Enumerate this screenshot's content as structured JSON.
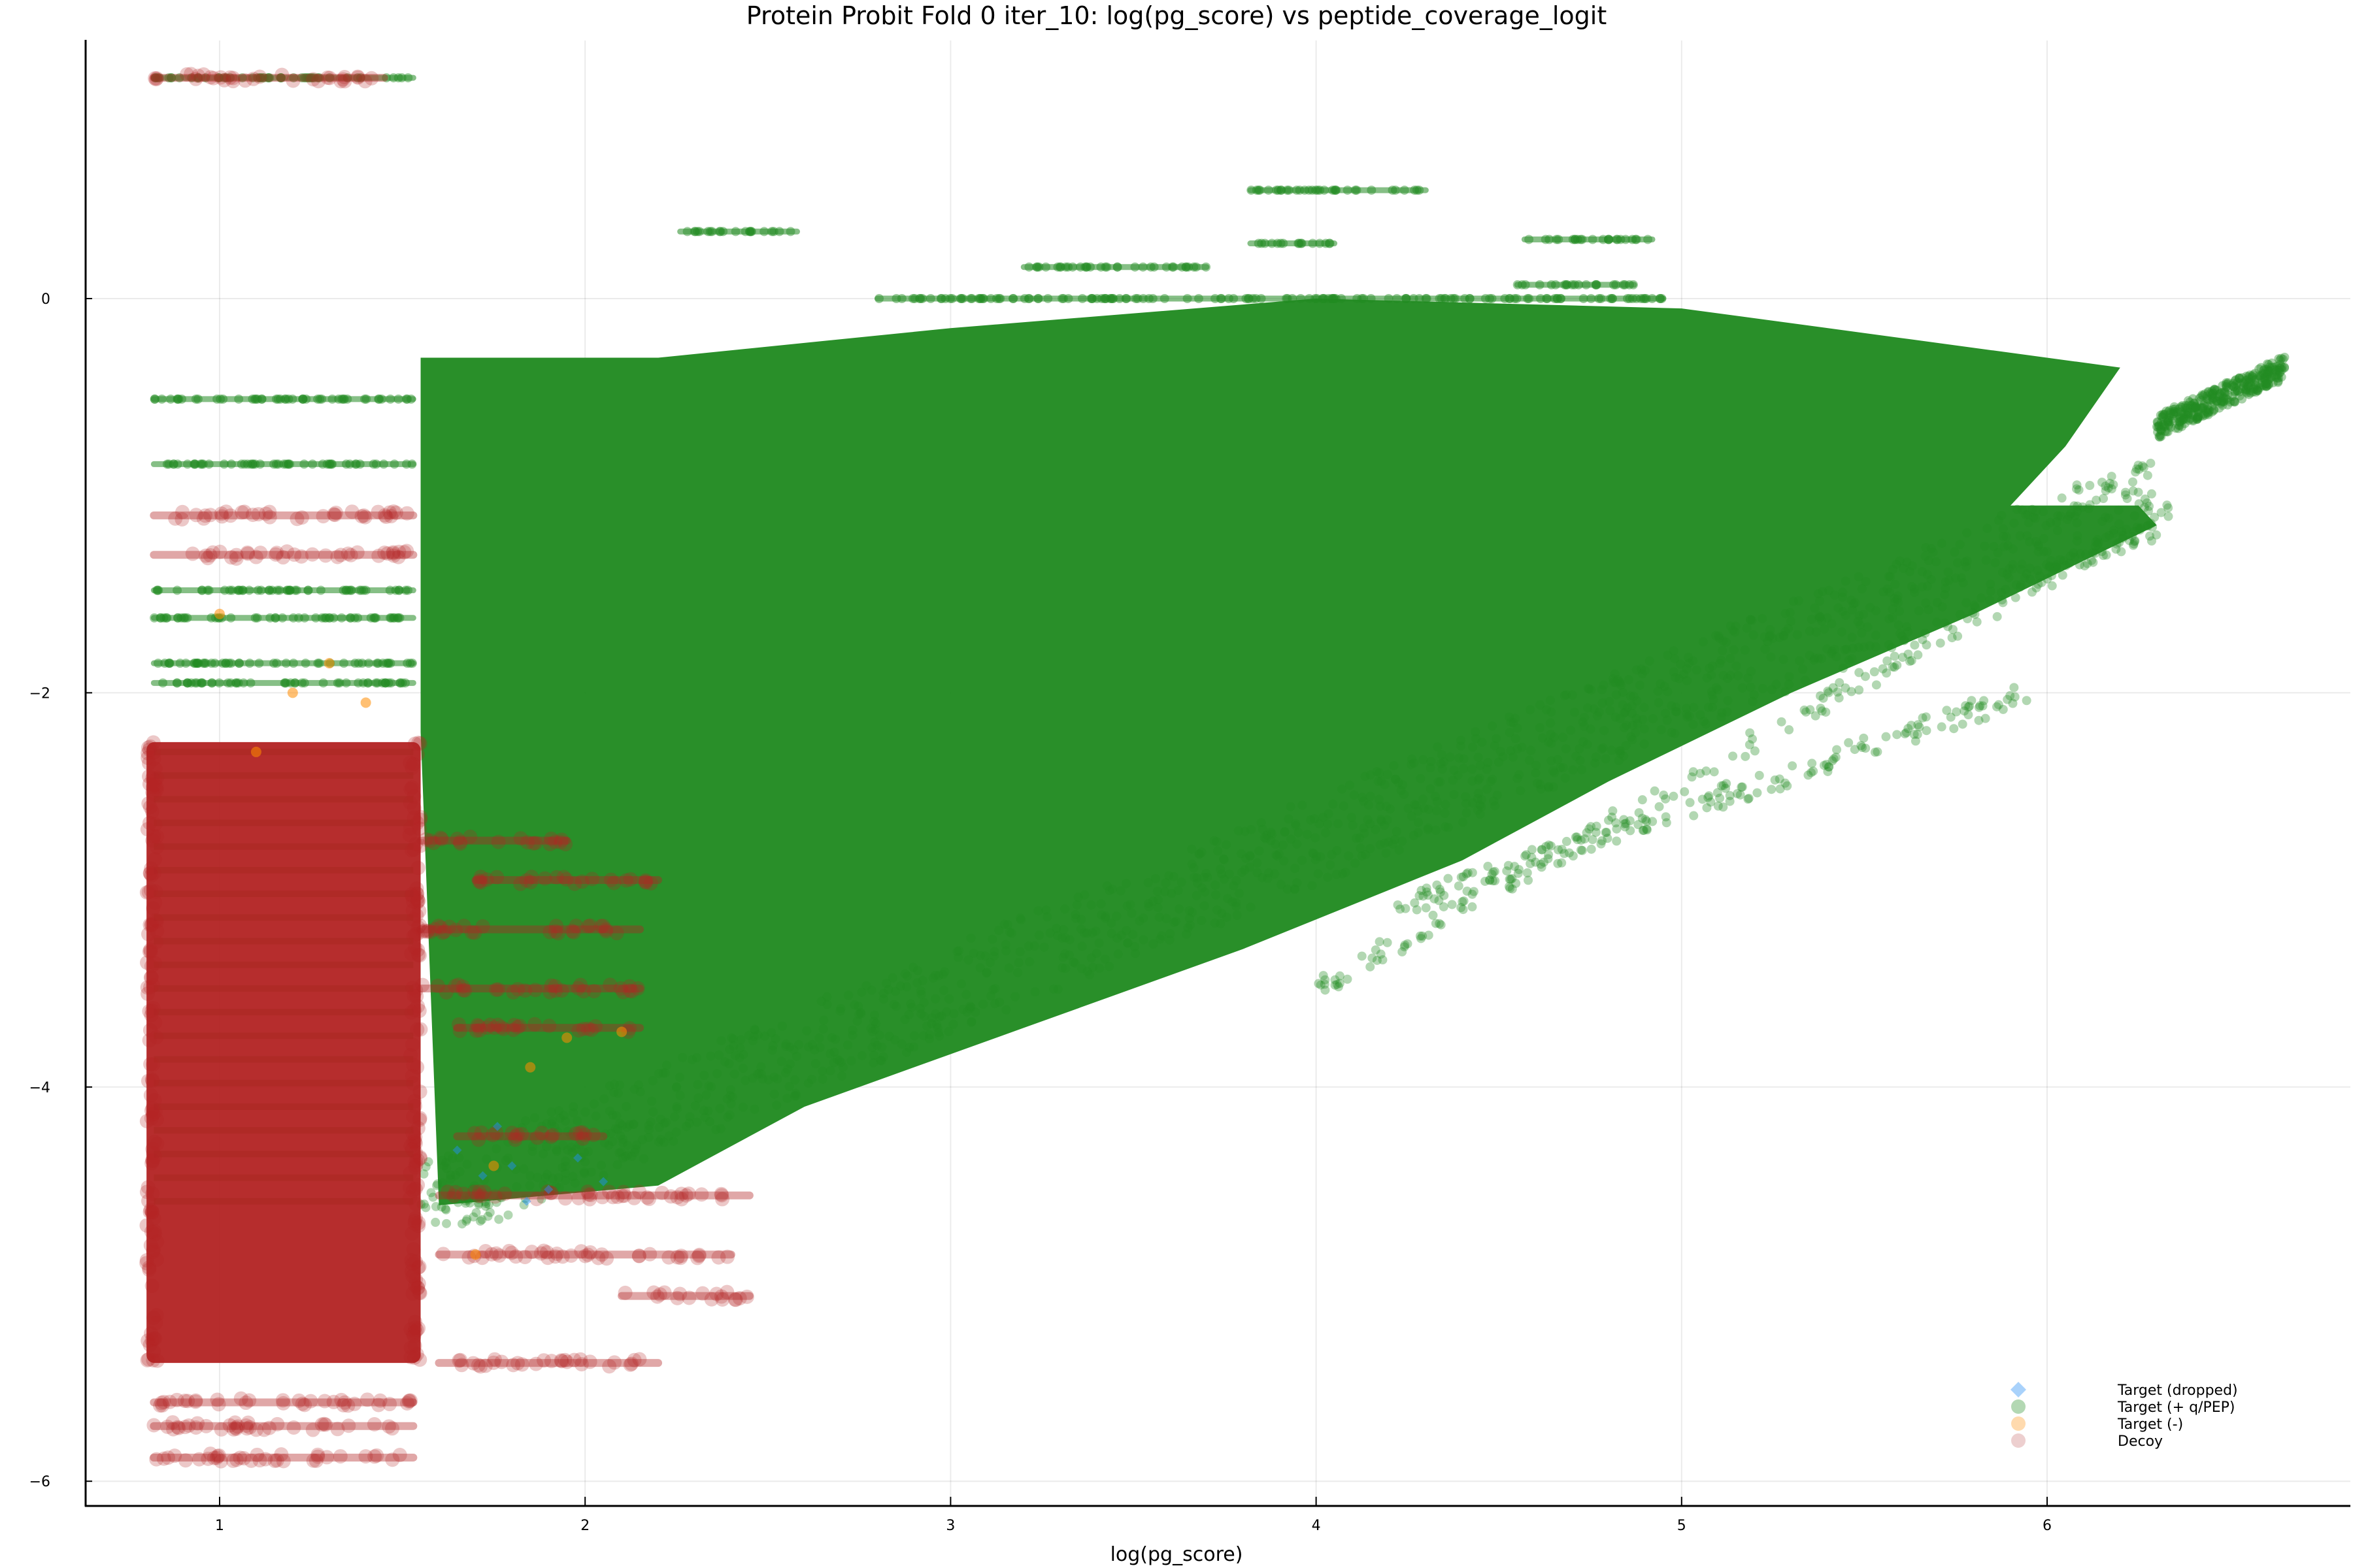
{
  "chart_data": {
    "type": "scatter",
    "title": "Protein Probit Fold 0 iter_10: log(pg_score) vs peptide_coverage_logit",
    "xlabel": "log(pg_score)",
    "ylabel": "",
    "xlim": [
      0.62,
      6.82
    ],
    "ylim": [
      -6.12,
      1.3
    ],
    "xticks": [
      1,
      2,
      3,
      4,
      5,
      6
    ],
    "yticks": [
      0,
      -2,
      -4,
      -6
    ],
    "ytick_labels": [
      "0",
      "−2",
      "−4",
      "−6"
    ],
    "grid": true,
    "legend_position": "bottom-right",
    "colors": {
      "target_dropped": "#1E90FF",
      "target_pass": "#228B22",
      "target_fail": "#FF8C00",
      "decoy": "#B22222"
    },
    "series": [
      {
        "name": "Target (dropped)",
        "marker": "diamond",
        "color": "#1E90FF",
        "description": "sparse points near x 1.6-2.3, y -4.2 to -4.6",
        "points": [
          [
            1.65,
            -4.32
          ],
          [
            1.72,
            -4.45
          ],
          [
            1.8,
            -4.4
          ],
          [
            1.9,
            -4.52
          ],
          [
            1.98,
            -4.36
          ],
          [
            2.05,
            -4.48
          ],
          [
            1.76,
            -4.2
          ],
          [
            1.84,
            -4.58
          ]
        ]
      },
      {
        "name": "Target (+ q/PEP)",
        "marker": "circle",
        "color": "#228B22",
        "description": "dense wedge from x~0.8 to ~6.65, y -4.6 to 0.6; discrete rows at low x; outlier cluster near x 6.3-6.6, y -0.6 to -0.35",
        "rows": [
          {
            "y": 1.12,
            "x0": 0.82,
            "x1": 1.53
          },
          {
            "y": -0.51,
            "x0": 0.82,
            "x1": 1.53
          },
          {
            "y": -0.84,
            "x0": 0.82,
            "x1": 1.53
          },
          {
            "y": -1.48,
            "x0": 0.82,
            "x1": 1.53
          },
          {
            "y": -1.62,
            "x0": 0.82,
            "x1": 1.53
          },
          {
            "y": -1.85,
            "x0": 0.82,
            "x1": 1.53
          },
          {
            "y": -1.95,
            "x0": 0.82,
            "x1": 1.53
          },
          {
            "y": 0.34,
            "x0": 2.26,
            "x1": 2.58
          },
          {
            "y": 0.55,
            "x0": 3.82,
            "x1": 4.3
          },
          {
            "y": 0.3,
            "x0": 4.57,
            "x1": 4.92
          },
          {
            "y": 0.28,
            "x0": 3.82,
            "x1": 4.05
          },
          {
            "y": 0.16,
            "x0": 3.2,
            "x1": 3.7
          },
          {
            "y": 0.07,
            "x0": 4.55,
            "x1": 4.87
          },
          {
            "y": 0.0,
            "x0": 2.8,
            "x1": 4.95
          }
        ],
        "region_outline": [
          [
            1.55,
            -2.2
          ],
          [
            1.55,
            -0.3
          ],
          [
            2.2,
            -0.3
          ],
          [
            3.0,
            -0.15
          ],
          [
            4.0,
            0.0
          ],
          [
            5.0,
            -0.05
          ],
          [
            5.6,
            -0.2
          ],
          [
            6.2,
            -0.35
          ],
          [
            6.05,
            -0.75
          ],
          [
            5.9,
            -1.05
          ],
          [
            6.25,
            -1.05
          ],
          [
            6.3,
            -1.15
          ],
          [
            5.8,
            -1.6
          ],
          [
            5.3,
            -2.0
          ],
          [
            4.8,
            -2.45
          ],
          [
            4.4,
            -2.85
          ],
          [
            3.8,
            -3.3
          ],
          [
            3.2,
            -3.7
          ],
          [
            2.6,
            -4.1
          ],
          [
            2.2,
            -4.5
          ],
          [
            1.6,
            -4.6
          ],
          [
            1.55,
            -2.2
          ]
        ],
        "outlier_cluster": {
          "x0": 6.3,
          "x1": 6.65,
          "y0": -0.65,
          "y1": -0.35
        },
        "tail_lines": [
          {
            "x0": 4.2,
            "x1": 5.95,
            "y0": -3.1,
            "y1": -2.0
          },
          {
            "x0": 4.0,
            "x1": 6.35,
            "y0": -3.5,
            "y1": -1.05
          }
        ]
      },
      {
        "name": "Target (-)",
        "marker": "circle",
        "color": "#FF8C00",
        "description": "scattered points mixed among decoys, x 0.8-2.2, y -5.3 to -1.9",
        "points": [
          [
            1.2,
            -2.0
          ],
          [
            1.4,
            -2.05
          ],
          [
            1.0,
            -1.6
          ],
          [
            1.3,
            -1.85
          ],
          [
            1.1,
            -2.3
          ],
          [
            1.85,
            -3.9
          ],
          [
            1.75,
            -4.4
          ],
          [
            1.7,
            -4.85
          ],
          [
            1.95,
            -3.75
          ],
          [
            2.1,
            -3.72
          ]
        ]
      },
      {
        "name": "Decoy",
        "marker": "circle",
        "color": "#B22222",
        "description": "dense block x 0.8-1.55, y -5.4 to -2.2; rows at x 1.55-2.2; isolated rows below",
        "block": {
          "x0": 0.8,
          "x1": 1.55,
          "y0": -5.4,
          "y1": -2.25
        },
        "rows": [
          {
            "y": 1.12,
            "x0": 0.82,
            "x1": 1.45
          },
          {
            "y": -1.1,
            "x0": 0.82,
            "x1": 1.53
          },
          {
            "y": -1.3,
            "x0": 0.82,
            "x1": 1.53
          },
          {
            "y": -2.75,
            "x0": 1.55,
            "x1": 1.95
          },
          {
            "y": -2.95,
            "x0": 1.7,
            "x1": 2.2
          },
          {
            "y": -3.2,
            "x0": 1.55,
            "x1": 2.15
          },
          {
            "y": -3.5,
            "x0": 1.55,
            "x1": 2.15
          },
          {
            "y": -3.7,
            "x0": 1.65,
            "x1": 2.15
          },
          {
            "y": -4.25,
            "x0": 1.65,
            "x1": 2.05
          },
          {
            "y": -4.55,
            "x0": 1.6,
            "x1": 2.45
          },
          {
            "y": -4.85,
            "x0": 1.6,
            "x1": 2.4
          },
          {
            "y": -5.06,
            "x0": 2.1,
            "x1": 2.45
          },
          {
            "y": -5.4,
            "x0": 1.6,
            "x1": 2.2
          },
          {
            "y": -5.6,
            "x0": 0.82,
            "x1": 1.53
          },
          {
            "y": -5.72,
            "x0": 0.82,
            "x1": 1.53
          },
          {
            "y": -5.88,
            "x0": 0.82,
            "x1": 1.53
          }
        ]
      }
    ]
  },
  "legend": {
    "items": [
      {
        "label": "Target (dropped)",
        "marker": "diamond",
        "color": "#A9D2FB"
      },
      {
        "label": "Target (+ q/PEP)",
        "marker": "circle",
        "color": "#B3D8B3"
      },
      {
        "label": "Target (-)",
        "marker": "circle",
        "color": "#FFDAAE"
      },
      {
        "label": "Decoy",
        "marker": "circle",
        "color": "#EDCFCF"
      }
    ]
  }
}
